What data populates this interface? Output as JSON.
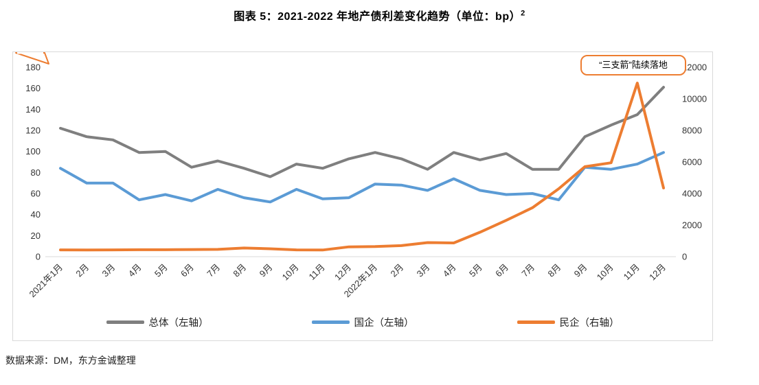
{
  "title": {
    "text": "图表 5：2021-2022 年地产债利差变化趋势（单位：bp）",
    "footnote_marker": "2"
  },
  "annotation": {
    "text": "“三支箭”陆续落地"
  },
  "source": "数据来源：DM，东方金诚整理",
  "colors": {
    "accent_orange": "#ED7D31",
    "axis_line": "#D9D9D9",
    "frame_border": "#D9D9D9",
    "tick_text": "#333333"
  },
  "chart_data": {
    "type": "line",
    "grid": false,
    "legend_position": "bottom",
    "categories": [
      "2021年1月",
      "2月",
      "3月",
      "4月",
      "5月",
      "6月",
      "7月",
      "8月",
      "9月",
      "10月",
      "11月",
      "12月",
      "2022年1月",
      "2月",
      "3月",
      "4月",
      "5月",
      "6月",
      "7月",
      "8月",
      "9月",
      "10月",
      "11月",
      "12月"
    ],
    "left_axis": {
      "min": 0,
      "max": 180,
      "step": 20
    },
    "right_axis": {
      "min": 0,
      "max": 12000,
      "step": 2000
    },
    "series": [
      {
        "name": "总体（左轴）",
        "axis": "left",
        "color": "#7F7F7F",
        "values": [
          122,
          114,
          111,
          99,
          100,
          85,
          91,
          84,
          76,
          88,
          84,
          93,
          99,
          93,
          83,
          99,
          92,
          98,
          83,
          83,
          114,
          125,
          135,
          161
        ]
      },
      {
        "name": "国企（左轴）",
        "axis": "left",
        "color": "#5B9BD5",
        "values": [
          84,
          70,
          70,
          54,
          59,
          53,
          64,
          56,
          52,
          64,
          55,
          56,
          69,
          68,
          63,
          74,
          63,
          59,
          60,
          54,
          85,
          83,
          88,
          99
        ]
      },
      {
        "name": "民企（右轴）",
        "axis": "right",
        "color": "#ED7D31",
        "values": [
          430,
          420,
          430,
          440,
          440,
          450,
          460,
          550,
          500,
          430,
          420,
          620,
          640,
          700,
          890,
          870,
          1550,
          2300,
          3100,
          4300,
          5700,
          5950,
          11000,
          4350
        ]
      }
    ]
  }
}
